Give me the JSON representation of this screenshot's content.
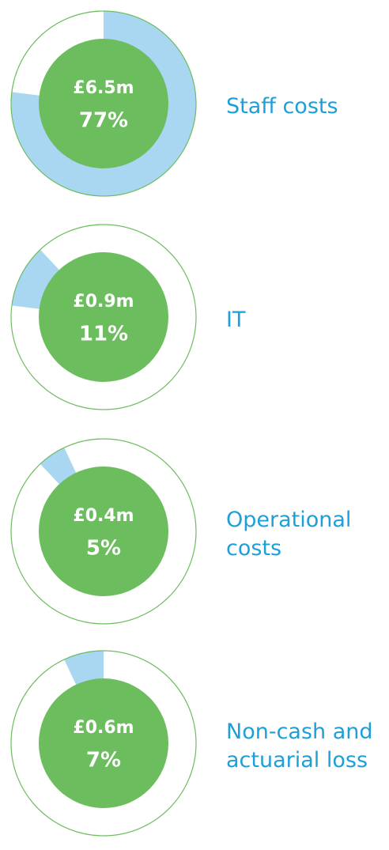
{
  "chart_data": [
    {
      "type": "donut",
      "title": "Staff costs",
      "amount": "£6.5m",
      "values": [
        77
      ],
      "value_labels": [
        "77%"
      ],
      "color": "#a9d7f2",
      "center_color": "#6cbd5e",
      "label_color": "#1d9fd9"
    },
    {
      "type": "donut",
      "title": "IT",
      "amount": "£0.9m",
      "values": [
        11
      ],
      "value_labels": [
        "11%"
      ],
      "color": "#a9d7f2",
      "center_color": "#6cbd5e",
      "label_color": "#1d9fd9"
    },
    {
      "type": "donut",
      "title": "Operational costs",
      "amount": "£0.4m",
      "values": [
        5
      ],
      "value_labels": [
        "5%"
      ],
      "color": "#a9d7f2",
      "center_color": "#6cbd5e",
      "label_color": "#1d9fd9"
    },
    {
      "type": "donut",
      "title": "Non-cash and actuarial loss",
      "amount": "£0.6m",
      "values": [
        7
      ],
      "value_labels": [
        "7%"
      ],
      "color": "#a9d7f2",
      "center_color": "#6cbd5e",
      "label_color": "#1d9fd9"
    }
  ]
}
